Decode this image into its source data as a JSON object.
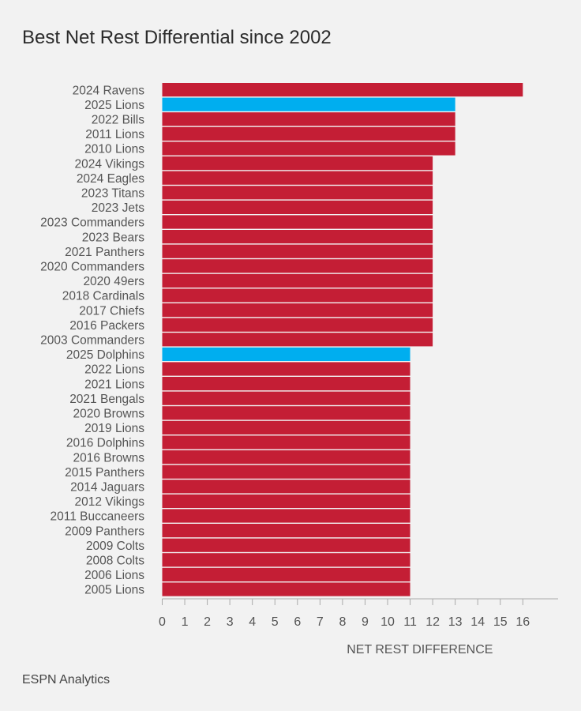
{
  "title": "Best Net Rest Differential since 2002",
  "source": "ESPN Analytics",
  "colors": {
    "default_bar": "#c41e35",
    "highlight_bar": "#00aeef",
    "axis": "#aaaaaa",
    "label_text": "#555555"
  },
  "chart_data": {
    "type": "bar",
    "orientation": "horizontal",
    "title": "Best Net Rest Differential since 2002",
    "xlabel": "NET REST DIFFERENCE",
    "ylabel": "",
    "xlim": [
      0,
      17.7
    ],
    "xticks": [
      "0",
      "1",
      "2",
      "3",
      "4",
      "5",
      "6",
      "7",
      "8",
      "9",
      "10",
      "11",
      "12",
      "13",
      "14",
      "15",
      "16"
    ],
    "grid": false,
    "categories": [
      "2024 Ravens",
      "2025 Lions",
      "2022 Bills",
      "2011 Lions",
      "2010 Lions",
      "2024 Vikings",
      "2024 Eagles",
      "2023 Titans",
      "2023 Jets",
      "2023 Commanders",
      "2023 Bears",
      "2021 Panthers",
      "2020 Commanders",
      "2020 49ers",
      "2018 Cardinals",
      "2017 Chiefs",
      "2016 Packers",
      "2003 Commanders",
      "2025 Dolphins",
      "2022 Lions",
      "2021 Lions",
      "2021 Bengals",
      "2020 Browns",
      "2019 Lions",
      "2016 Dolphins",
      "2016 Browns",
      "2015 Panthers",
      "2014 Jaguars",
      "2012 Vikings",
      "2011 Buccaneers",
      "2009 Panthers",
      "2009 Colts",
      "2008 Colts",
      "2006 Lions",
      "2005 Lions"
    ],
    "values": [
      16,
      13,
      13,
      13,
      13,
      12,
      12,
      12,
      12,
      12,
      12,
      12,
      12,
      12,
      12,
      12,
      12,
      12,
      11,
      11,
      11,
      11,
      11,
      11,
      11,
      11,
      11,
      11,
      11,
      11,
      11,
      11,
      11,
      11,
      11
    ],
    "highlighted": [
      "2025 Lions",
      "2025 Dolphins"
    ]
  }
}
